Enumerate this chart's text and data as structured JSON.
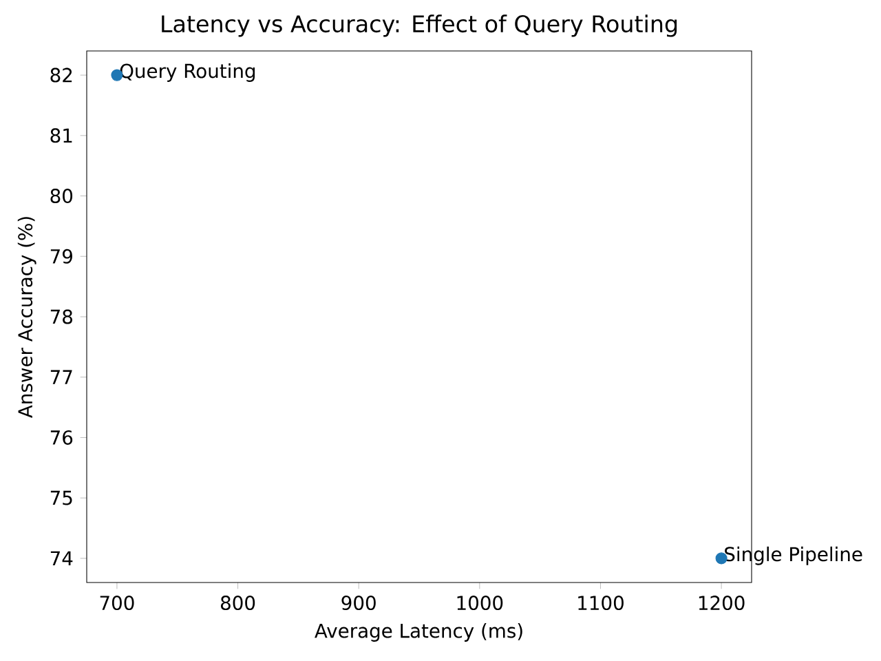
{
  "chart_data": {
    "type": "scatter",
    "title": "Latency vs Accuracy: Effect of Query Routing",
    "xlabel": "Average Latency (ms)",
    "ylabel": "Answer Accuracy (%)",
    "x": [
      700,
      1200
    ],
    "values": [
      82,
      74
    ],
    "color": "#1f77b4",
    "marker": "circle",
    "xlim": [
      675,
      1225
    ],
    "ylim": [
      73.6,
      82.4
    ],
    "xticks": [
      700,
      800,
      900,
      1000,
      1100,
      1200
    ],
    "yticks": [
      74,
      75,
      76,
      77,
      78,
      79,
      80,
      81,
      82
    ],
    "annotations": [
      {
        "text": "Query Routing",
        "x": 700,
        "y": 82
      },
      {
        "text": "Single Pipeline",
        "x": 1200,
        "y": 74
      }
    ]
  }
}
